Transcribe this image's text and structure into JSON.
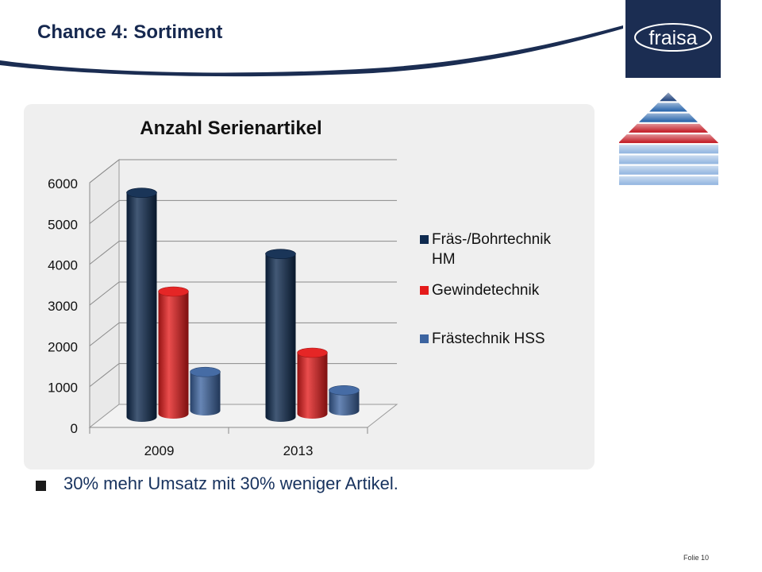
{
  "slide": {
    "title": "Chance 4: Sortiment",
    "logo_text": "fraisa",
    "bullet": "30% mehr Umsatz mit 30% weniger Artikel.",
    "footer": "Folie 10"
  },
  "colors": {
    "brand_navy": "#1b2d52",
    "series_hm": "#0e2a4f",
    "series_gewinde": "#e41b1b",
    "series_hss": "#3c64a0"
  },
  "chart_data": {
    "type": "bar",
    "title": "Anzahl Serienartikel",
    "categories": [
      "2009",
      "2013"
    ],
    "series": [
      {
        "name": "Fräs-/Bohrtechnik HM",
        "values": [
          5500,
          4000
        ],
        "color": "#0e2a4f"
      },
      {
        "name": "Gewindetechnik",
        "values": [
          3000,
          1500
        ],
        "color": "#e41b1b"
      },
      {
        "name": "Frästechnik HSS",
        "values": [
          950,
          500
        ],
        "color": "#3c64a0"
      }
    ],
    "ylim": [
      0,
      6000
    ],
    "yticks": [
      "0",
      "1000",
      "2000",
      "3000",
      "4000",
      "5000",
      "6000"
    ],
    "grid": true,
    "legend_position": "right",
    "style": "3d-cylinder"
  }
}
